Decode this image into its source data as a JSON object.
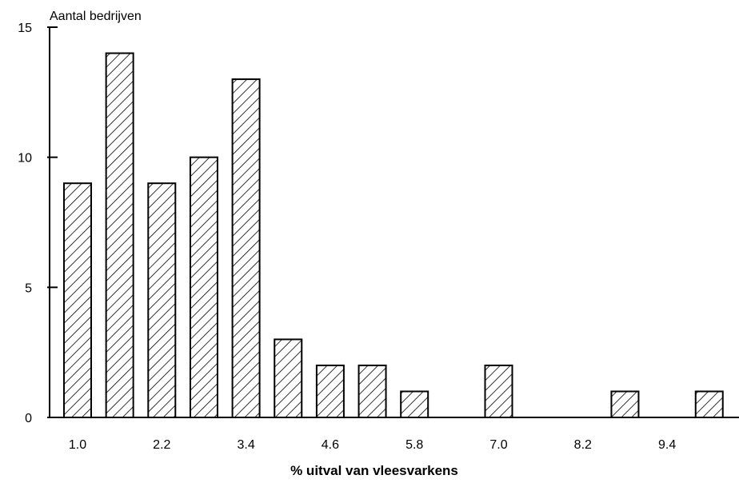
{
  "chart_data": {
    "type": "bar",
    "ylabel": "Aantal bedrijven",
    "xlabel": "% uitval van vleesvarkens",
    "x": [
      1.0,
      1.6,
      2.2,
      2.8,
      3.4,
      4.0,
      4.6,
      5.2,
      5.8,
      6.4,
      7.0,
      7.6,
      8.2,
      8.8,
      9.4,
      10.0
    ],
    "values": [
      9,
      14,
      9,
      10,
      13,
      3,
      2,
      2,
      1,
      0,
      2,
      0,
      0,
      1,
      0,
      1
    ],
    "xticks": [
      "1.0",
      "2.2",
      "3.4",
      "4.6",
      "5.8",
      "7.0",
      "8.2",
      "9.4"
    ],
    "yticks": [
      0,
      5,
      10,
      15
    ],
    "ylim": [
      0,
      15
    ],
    "bar_fill": "diagonal-hatch",
    "bar_color": "#000000",
    "grid": false,
    "legend": "none"
  }
}
